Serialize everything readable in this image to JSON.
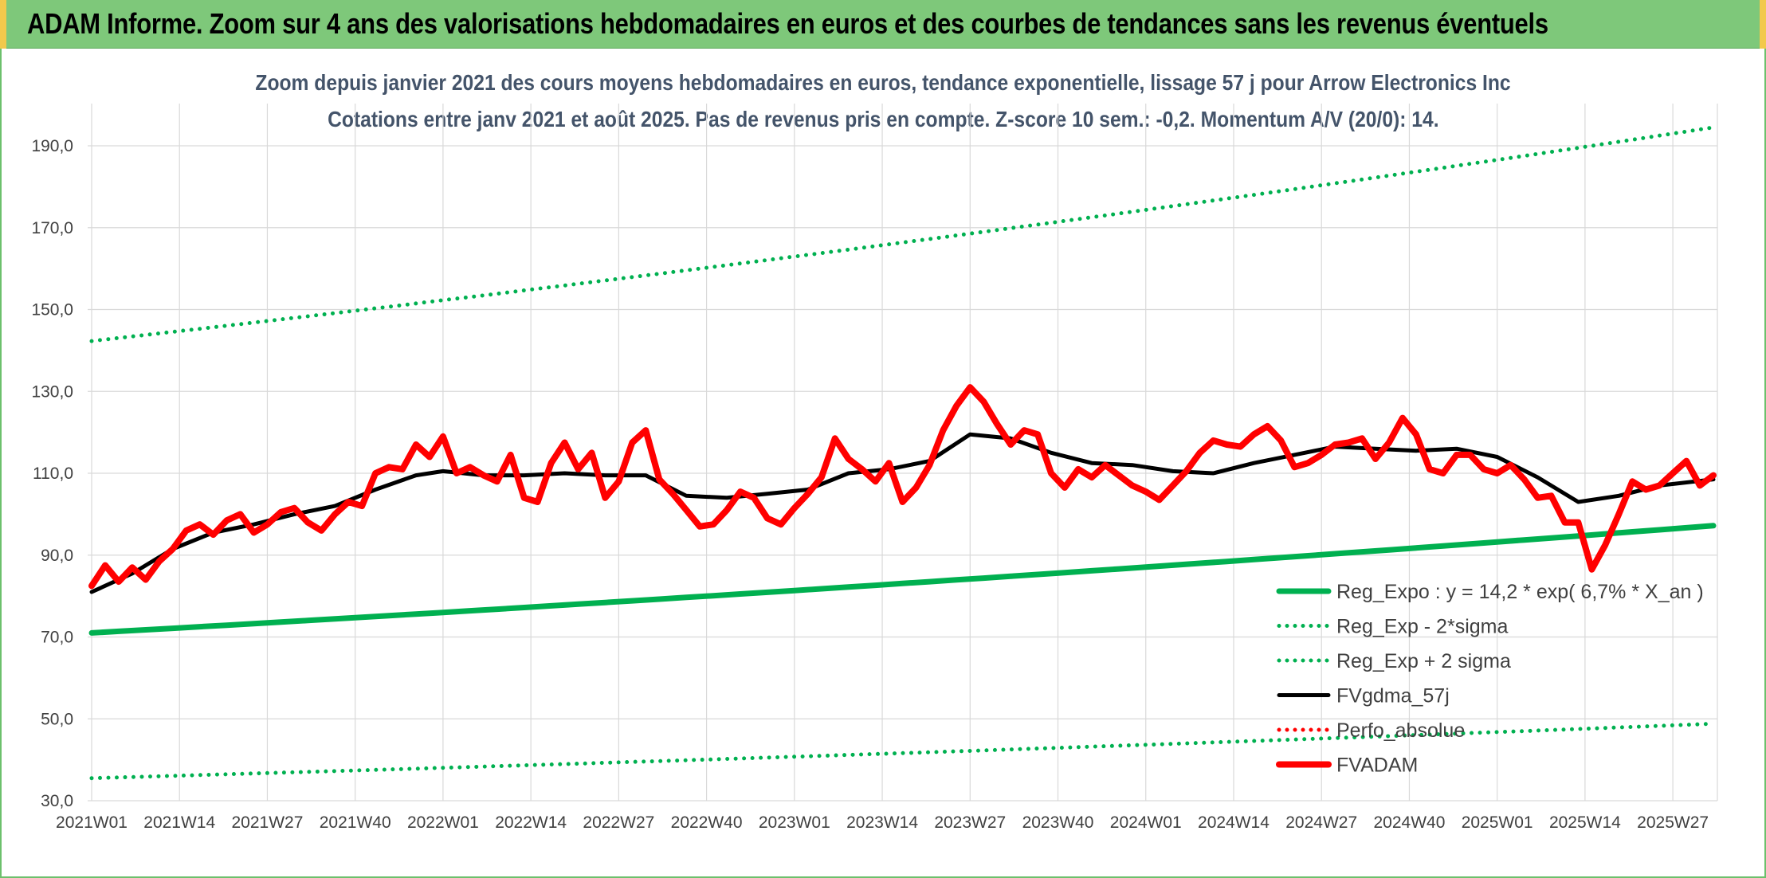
{
  "header": {
    "title": "ADAM Informe. Zoom sur 4 ans des valorisations hebdomadaires en euros et des courbes de tendances sans les revenus éventuels"
  },
  "colors": {
    "header_bg": "#7ec87a",
    "trend_green": "#00b050",
    "fvadam_red": "#ff0000",
    "gdma_black": "#000000",
    "perfo_red": "#ff0000",
    "grid": "#d9d9d9"
  },
  "chart_data": {
    "type": "line",
    "title": "Zoom depuis janvier 2021 des cours moyens hebdomadaires en euros, tendance exponentielle, lissage 57 j pour Arrow Electronics Inc",
    "subtitle": "Cotations entre janv 2021 et août 2025. Pas de revenus pris en compte. Z-score 10 sem.: -0,2. Momentum A/V (20/0): 14.",
    "xlabel": "",
    "ylabel": "",
    "ylim": [
      30,
      190
    ],
    "yticks": [
      "30,0",
      "50,0",
      "70,0",
      "90,0",
      "110,0",
      "130,0",
      "150,0",
      "170,0",
      "190,0"
    ],
    "ytick_values": [
      30,
      50,
      70,
      90,
      110,
      130,
      150,
      170,
      190
    ],
    "x_week_count": 241,
    "xticks": [
      "2021W01",
      "2021W14",
      "2021W27",
      "2021W40",
      "2022W01",
      "2022W14",
      "2022W27",
      "2022W40",
      "2023W01",
      "2023W14",
      "2023W27",
      "2023W40",
      "2024W01",
      "2024W14",
      "2024W27",
      "2024W40",
      "2025W01",
      "2025W14",
      "2025W27"
    ],
    "xtick_week_index": [
      0,
      13,
      26,
      39,
      52,
      65,
      78,
      91,
      104,
      117,
      130,
      143,
      156,
      169,
      182,
      195,
      208,
      221,
      234
    ],
    "grid": true,
    "legend_position": "bottom-right",
    "series": [
      {
        "name": "Reg_Expo : y = 14,2 * exp( 6,7% *  X_an )",
        "style": "solid-thick",
        "color": "#00b050",
        "x": [
          0,
          240
        ],
        "values": [
          71.0,
          97.2
        ]
      },
      {
        "name": "Reg_Exp - 2*sigma",
        "style": "dotted",
        "color": "#00b050",
        "x": [
          0,
          240
        ],
        "values": [
          35.5,
          48.8
        ]
      },
      {
        "name": "Reg_Exp + 2 sigma",
        "style": "dotted",
        "color": "#00b050",
        "x": [
          0,
          240
        ],
        "values": [
          142.3,
          194.5
        ]
      },
      {
        "name": "FVgdma_57j",
        "style": "solid",
        "color": "#000000",
        "x": [
          0,
          6,
          12,
          18,
          24,
          30,
          36,
          42,
          48,
          52,
          58,
          64,
          70,
          76,
          82,
          88,
          94,
          100,
          106,
          112,
          118,
          124,
          130,
          136,
          142,
          148,
          154,
          160,
          166,
          172,
          178,
          184,
          190,
          196,
          202,
          208,
          214,
          220,
          226,
          232,
          240
        ],
        "values": [
          81,
          85.5,
          91.5,
          95.5,
          97.5,
          100,
          102,
          106,
          109.5,
          110.5,
          109.5,
          109.5,
          110,
          109.5,
          109.5,
          104.5,
          104,
          105,
          106,
          110,
          111,
          113,
          119.5,
          118.5,
          115,
          112.5,
          112,
          110.5,
          110,
          112.5,
          114.5,
          116.5,
          116,
          115.5,
          116,
          114,
          109,
          103,
          104.5,
          107,
          108.5
        ]
      },
      {
        "name": "Perfo_absolue",
        "style": "dotted",
        "color": "#ff0000",
        "x": [],
        "values": []
      },
      {
        "name": "FVADAM",
        "style": "solid-thick",
        "color": "#ff0000",
        "x": [
          0,
          2,
          4,
          6,
          8,
          10,
          12,
          14,
          16,
          18,
          20,
          22,
          24,
          26,
          28,
          30,
          32,
          34,
          36,
          38,
          40,
          42,
          44,
          46,
          48,
          50,
          52,
          54,
          56,
          58,
          60,
          62,
          64,
          66,
          68,
          70,
          72,
          74,
          76,
          78,
          80,
          82,
          84,
          86,
          88,
          90,
          92,
          94,
          96,
          98,
          100,
          102,
          104,
          106,
          108,
          110,
          112,
          114,
          116,
          118,
          120,
          122,
          124,
          126,
          128,
          130,
          132,
          134,
          136,
          138,
          140,
          142,
          144,
          146,
          148,
          150,
          152,
          154,
          156,
          158,
          160,
          162,
          164,
          166,
          168,
          170,
          172,
          174,
          176,
          178,
          180,
          182,
          184,
          186,
          188,
          190,
          192,
          194,
          196,
          198,
          200,
          202,
          204,
          206,
          208,
          210,
          212,
          214,
          216,
          218,
          220,
          222,
          224,
          226,
          228,
          230,
          232,
          234,
          236,
          238,
          240
        ],
        "values": [
          82.5,
          87.5,
          83.5,
          87,
          84,
          88.5,
          91.5,
          96,
          97.5,
          95,
          98.5,
          100,
          95.5,
          97.5,
          100.5,
          101.5,
          98,
          96,
          100,
          103,
          102,
          110,
          111.5,
          111,
          117,
          114,
          119,
          110,
          111.5,
          109.5,
          108,
          114.5,
          104,
          103,
          112.5,
          117.5,
          111,
          115,
          104,
          108,
          117.5,
          120.5,
          108.5,
          105,
          101,
          97,
          97.5,
          101,
          105.5,
          104,
          99,
          97.5,
          101.5,
          105,
          109,
          118.5,
          113.5,
          111,
          108,
          112.5,
          103,
          106.5,
          112,
          120.5,
          126.5,
          131,
          127.5,
          122,
          117,
          120.5,
          119.5,
          110,
          106.5,
          111,
          109,
          112,
          109.5,
          107,
          105.5,
          103.5,
          107,
          110.5,
          115,
          118,
          117,
          116.5,
          119.5,
          121.5,
          118,
          111.5,
          112.5,
          114.5,
          117,
          117.5,
          118.5,
          113.5,
          117.5,
          123.5,
          119.5,
          111,
          110,
          114.5,
          114.5,
          111,
          110,
          112,
          108.5,
          104,
          104.5,
          98,
          98,
          86.5,
          92.5,
          100,
          108,
          106,
          107,
          110,
          113,
          107,
          109.5
        ]
      }
    ]
  }
}
